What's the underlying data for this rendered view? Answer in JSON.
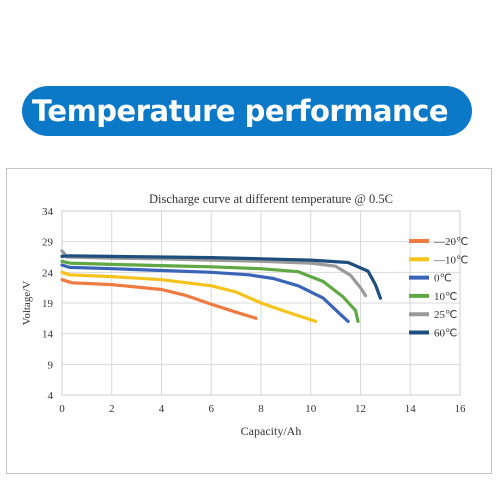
{
  "banner": {
    "title": "Temperature performance"
  },
  "chart_data": {
    "type": "line",
    "title": "Discharge curve at different temperature @ 0.5C",
    "xlabel": "Capacity/Ah",
    "ylabel": "Voltage/V",
    "xlim": [
      0,
      16
    ],
    "ylim": [
      4,
      34
    ],
    "xticks": [
      "0",
      "2",
      "4",
      "6",
      "8",
      "10",
      "12",
      "14",
      "16"
    ],
    "yticks": [
      "4",
      "9",
      "14",
      "19",
      "24",
      "29",
      "34"
    ],
    "grid": true,
    "legend_position": "right",
    "series": [
      {
        "name": "—20℃",
        "color": "#f07b40",
        "points": [
          [
            0,
            22.8
          ],
          [
            0.4,
            22.3
          ],
          [
            2,
            22.0
          ],
          [
            4,
            21.2
          ],
          [
            5,
            20.2
          ],
          [
            6,
            18.8
          ],
          [
            7,
            17.5
          ],
          [
            7.8,
            16.5
          ]
        ]
      },
      {
        "name": "—10℃",
        "color": "#f5c31c",
        "points": [
          [
            0,
            24.0
          ],
          [
            0.3,
            23.6
          ],
          [
            2,
            23.3
          ],
          [
            4,
            22.8
          ],
          [
            6,
            21.8
          ],
          [
            7,
            20.8
          ],
          [
            8,
            19.0
          ],
          [
            9,
            17.6
          ],
          [
            10.2,
            16.0
          ]
        ]
      },
      {
        "name": "0℃",
        "color": "#3a64b8",
        "points": [
          [
            0,
            25.2
          ],
          [
            0.3,
            24.8
          ],
          [
            2,
            24.6
          ],
          [
            4,
            24.3
          ],
          [
            6,
            24.0
          ],
          [
            7.5,
            23.6
          ],
          [
            8.5,
            23.0
          ],
          [
            9.5,
            21.8
          ],
          [
            10.5,
            19.8
          ],
          [
            11.1,
            17.5
          ],
          [
            11.5,
            16.0
          ]
        ]
      },
      {
        "name": "10℃",
        "color": "#5fa843",
        "points": [
          [
            0,
            25.8
          ],
          [
            0.3,
            25.5
          ],
          [
            2,
            25.3
          ],
          [
            4,
            25.1
          ],
          [
            6,
            24.9
          ],
          [
            8,
            24.6
          ],
          [
            9.5,
            24.1
          ],
          [
            10.5,
            22.5
          ],
          [
            11.3,
            20.0
          ],
          [
            11.8,
            17.8
          ],
          [
            11.9,
            16.0
          ]
        ]
      },
      {
        "name": "25℃",
        "color": "#9a9a9a",
        "points": [
          [
            0,
            27.5
          ],
          [
            0.2,
            26.5
          ],
          [
            2,
            26.3
          ],
          [
            4,
            26.2
          ],
          [
            6,
            26.0
          ],
          [
            8,
            25.8
          ],
          [
            10,
            25.5
          ],
          [
            11,
            25.0
          ],
          [
            11.6,
            23.5
          ],
          [
            12.0,
            21.5
          ],
          [
            12.2,
            20.2
          ]
        ]
      },
      {
        "name": "60℃",
        "color": "#1d4e7d",
        "points": [
          [
            0,
            26.6
          ],
          [
            0.3,
            26.7
          ],
          [
            2,
            26.6
          ],
          [
            4,
            26.5
          ],
          [
            6,
            26.4
          ],
          [
            8,
            26.2
          ],
          [
            10,
            26.0
          ],
          [
            11.5,
            25.6
          ],
          [
            12.3,
            24.2
          ],
          [
            12.6,
            22.0
          ],
          [
            12.8,
            19.8
          ]
        ]
      }
    ]
  }
}
